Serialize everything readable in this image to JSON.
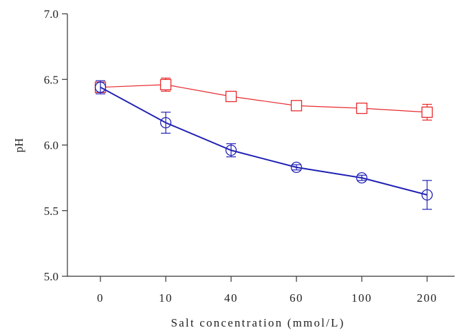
{
  "chart_data": {
    "type": "line",
    "title": "",
    "xlabel": "Salt concentration (mmol/L)",
    "ylabel": "pH",
    "categories": [
      "0",
      "10",
      "40",
      "60",
      "100",
      "200"
    ],
    "ylim": [
      5.0,
      7.0
    ],
    "yticks": [
      "5.0",
      "5.5",
      "6.0",
      "6.5",
      "7.0"
    ],
    "grid": false,
    "legend": "none",
    "series": [
      {
        "marker": "square",
        "color": "#e8262a",
        "values": [
          6.44,
          6.46,
          6.37,
          6.3,
          6.28,
          6.25
        ],
        "errors": [
          0.04,
          0.05,
          0.02,
          0.02,
          0.02,
          0.06
        ]
      },
      {
        "marker": "circle",
        "color": "#1f1fb4",
        "values": [
          6.44,
          6.17,
          5.96,
          5.83,
          5.75,
          5.62
        ],
        "errors": [
          0.05,
          0.08,
          0.05,
          0.02,
          0.02,
          0.11
        ]
      }
    ]
  }
}
